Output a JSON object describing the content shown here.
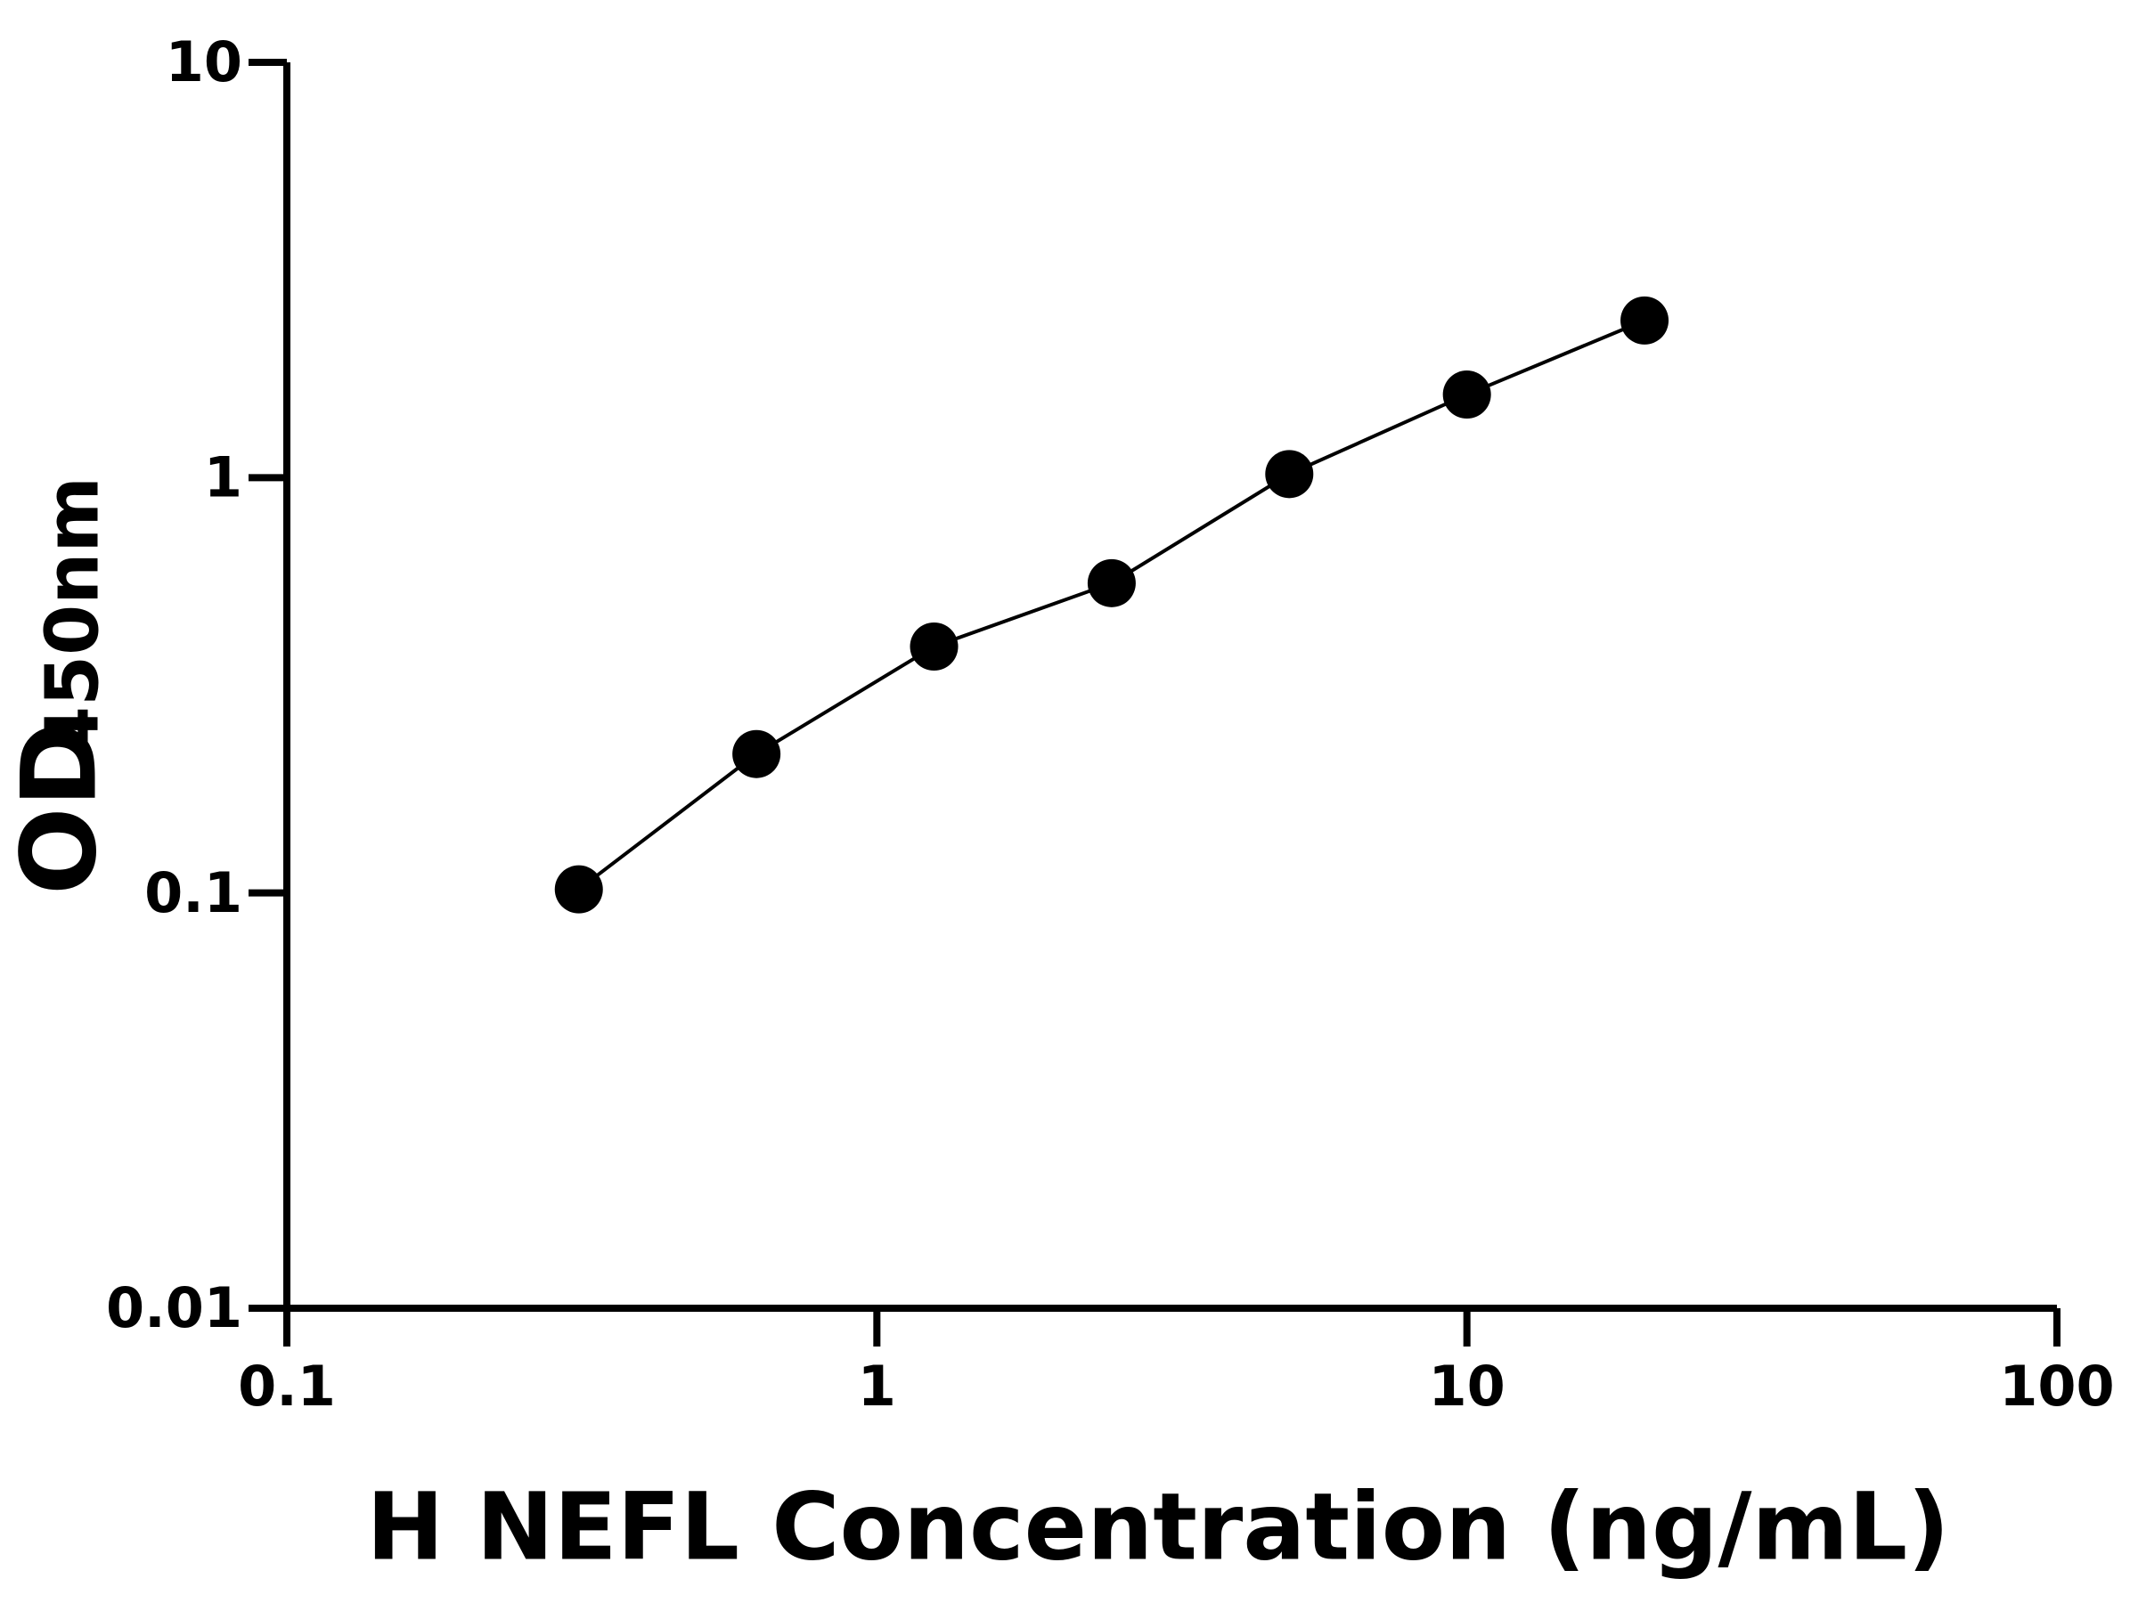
{
  "chart_data": {
    "type": "scatter",
    "xlabel": "H NEFL Concentration (ng/mL)",
    "ylabel": "OD",
    "ylabel_subscript": "450nm",
    "xscale": "log",
    "yscale": "log",
    "xlim": [
      0.1,
      100
    ],
    "xticks": [
      0.1,
      1,
      10,
      100
    ],
    "ylim": [
      0.01,
      10
    ],
    "yticks": [
      0.01,
      0.1,
      1,
      10
    ],
    "series": [
      {
        "color": "#000000",
        "line": true,
        "x": [
          0.3125,
          0.625,
          1.25,
          2.5,
          5,
          10,
          20
        ],
        "values": [
          0.102,
          0.216,
          0.392,
          0.557,
          1.02,
          1.585,
          2.39
        ]
      }
    ]
  }
}
